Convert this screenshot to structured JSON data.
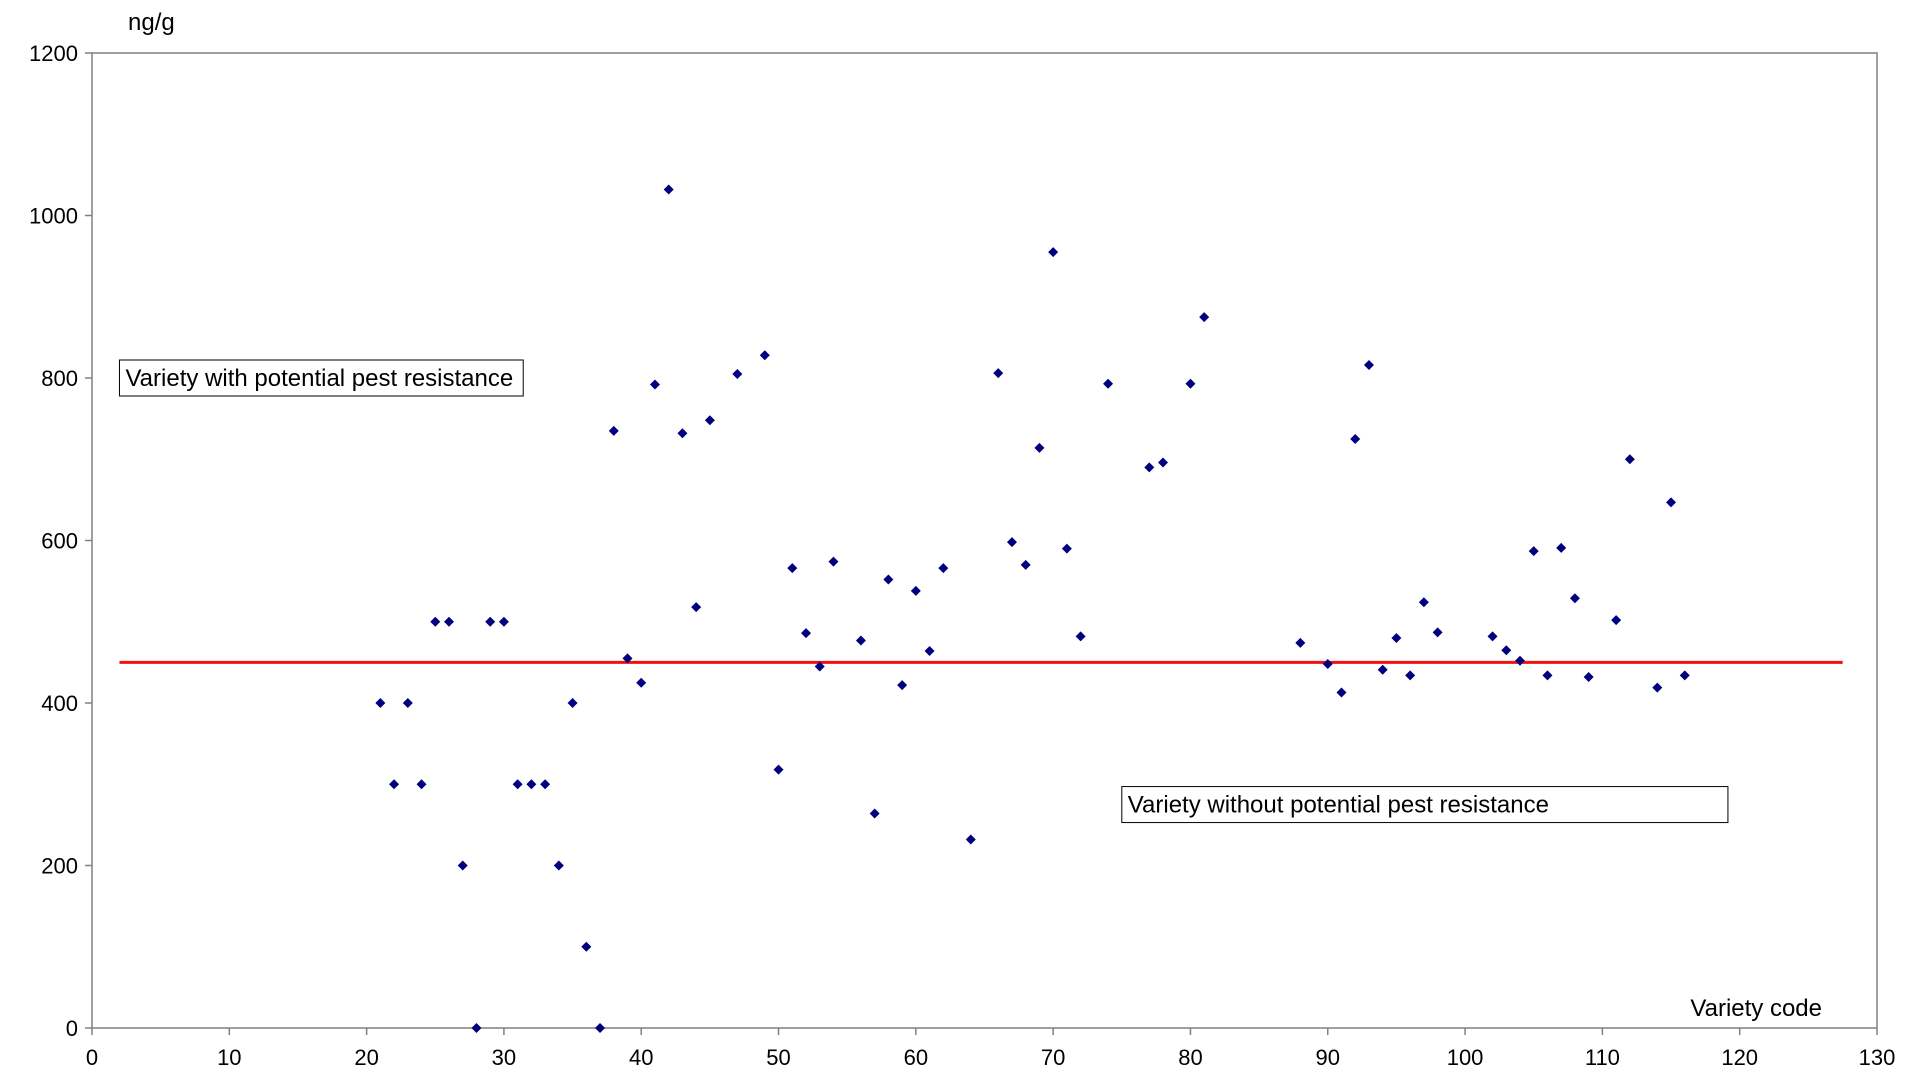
{
  "chart_data": {
    "type": "scatter",
    "title": "",
    "xlabel": "Variety code",
    "ylabel": "ng/g",
    "xlim": [
      0,
      130
    ],
    "ylim": [
      0,
      1200
    ],
    "x_ticks": [
      0,
      10,
      20,
      30,
      40,
      50,
      60,
      70,
      80,
      90,
      100,
      110,
      120,
      130
    ],
    "y_ticks": [
      0,
      200,
      400,
      600,
      800,
      1000,
      1200
    ],
    "grid": false,
    "legend": "none",
    "marker_color": "#00007f",
    "threshold": {
      "value": 450,
      "x_start": 2,
      "x_end": 127.5,
      "color": "#ee1111"
    },
    "annotations": [
      {
        "text": "Variety with potential pest resistance",
        "x": 2,
        "y": 800
      },
      {
        "text": "Variety without potential pest resistance",
        "x": 75,
        "y": 275
      }
    ],
    "series": [
      {
        "points": [
          [
            21,
            400
          ],
          [
            22,
            300
          ],
          [
            23,
            400
          ],
          [
            24,
            300
          ],
          [
            25,
            500
          ],
          [
            26,
            500
          ],
          [
            27,
            200
          ],
          [
            28,
            0
          ],
          [
            29,
            500
          ],
          [
            30,
            500
          ],
          [
            31,
            300
          ],
          [
            32,
            300
          ],
          [
            33,
            300
          ],
          [
            34,
            200
          ],
          [
            35,
            400
          ],
          [
            36,
            100
          ],
          [
            37,
            0
          ],
          [
            38,
            735
          ],
          [
            39,
            455
          ],
          [
            40,
            425
          ],
          [
            41,
            792
          ],
          [
            42,
            1032
          ],
          [
            43,
            732
          ],
          [
            44,
            518
          ],
          [
            45,
            748
          ],
          [
            47,
            805
          ],
          [
            49,
            828
          ],
          [
            50,
            318
          ],
          [
            51,
            566
          ],
          [
            52,
            486
          ],
          [
            53,
            445
          ],
          [
            54,
            574
          ],
          [
            56,
            477
          ],
          [
            57,
            264
          ],
          [
            58,
            552
          ],
          [
            59,
            422
          ],
          [
            60,
            538
          ],
          [
            61,
            464
          ],
          [
            62,
            566
          ],
          [
            64,
            232
          ],
          [
            66,
            806
          ],
          [
            67,
            598
          ],
          [
            68,
            570
          ],
          [
            69,
            714
          ],
          [
            70,
            955
          ],
          [
            71,
            590
          ],
          [
            72,
            482
          ],
          [
            74,
            793
          ],
          [
            77,
            690
          ],
          [
            78,
            696
          ],
          [
            80,
            793
          ],
          [
            81,
            875
          ],
          [
            88,
            474
          ],
          [
            90,
            448
          ],
          [
            91,
            413
          ],
          [
            92,
            725
          ],
          [
            93,
            816
          ],
          [
            94,
            441
          ],
          [
            95,
            480
          ],
          [
            96,
            434
          ],
          [
            97,
            524
          ],
          [
            98,
            487
          ],
          [
            102,
            482
          ],
          [
            103,
            465
          ],
          [
            104,
            452
          ],
          [
            105,
            587
          ],
          [
            106,
            434
          ],
          [
            107,
            591
          ],
          [
            108,
            529
          ],
          [
            109,
            432
          ],
          [
            111,
            502
          ],
          [
            112,
            700
          ],
          [
            114,
            419
          ],
          [
            115,
            647
          ],
          [
            116,
            434
          ]
        ]
      }
    ]
  }
}
